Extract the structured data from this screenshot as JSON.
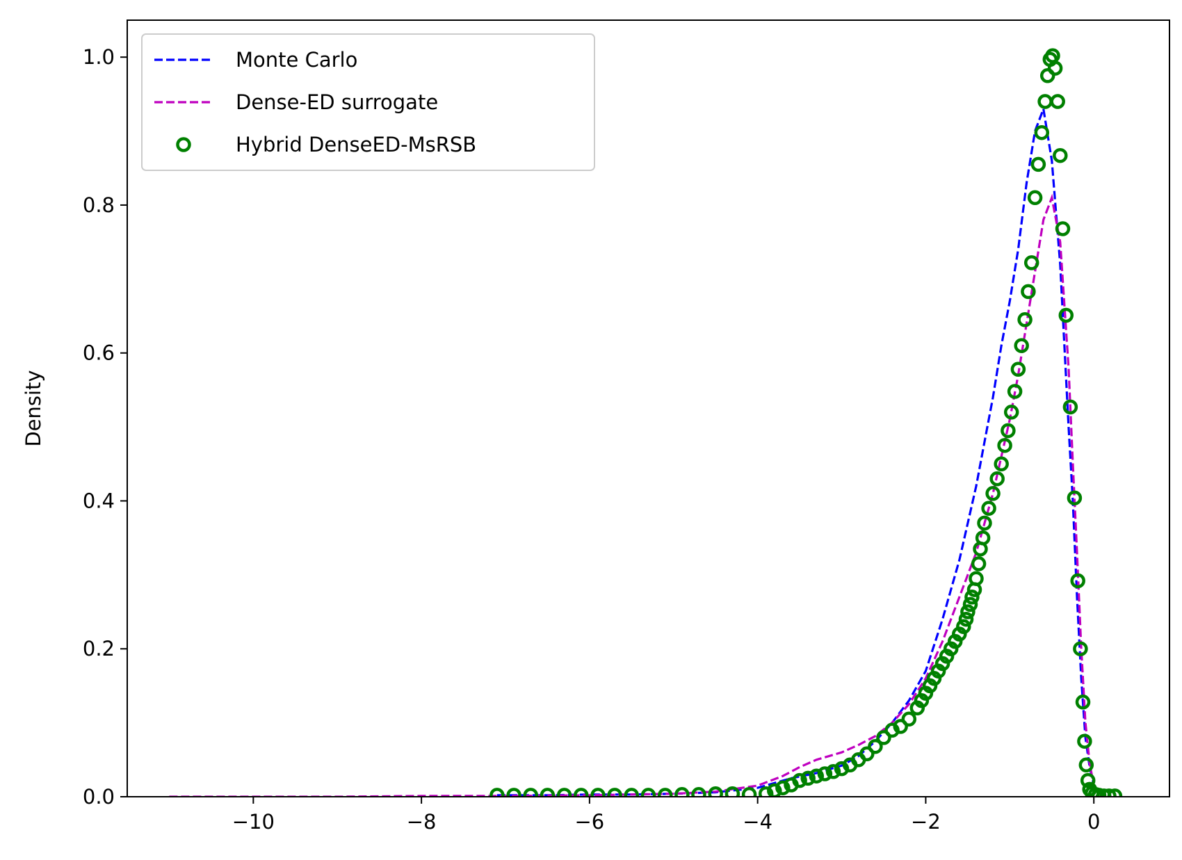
{
  "chart_data": {
    "type": "line",
    "title": "",
    "xlabel": "",
    "ylabel": "Density",
    "xlim": [
      -11.5,
      0.9
    ],
    "ylim": [
      0.0,
      1.05
    ],
    "x_ticks": [
      -10,
      -8,
      -6,
      -4,
      -2,
      0
    ],
    "x_tick_labels": [
      "−10",
      "−8",
      "−6",
      "−4",
      "−2",
      "0"
    ],
    "y_ticks": [
      0.0,
      0.2,
      0.4,
      0.6,
      0.8,
      1.0
    ],
    "y_tick_labels": [
      "0.0",
      "0.2",
      "0.4",
      "0.6",
      "0.8",
      "1.0"
    ],
    "grid": false,
    "legend_position": "top-left",
    "series": [
      {
        "name": "Monte Carlo",
        "style": "dashed-line",
        "color": "#0000ff",
        "x": [
          -7.1,
          -6.5,
          -6.0,
          -5.5,
          -5.0,
          -4.5,
          -4.0,
          -3.6,
          -3.3,
          -3.0,
          -2.8,
          -2.6,
          -2.4,
          -2.2,
          -2.0,
          -1.8,
          -1.6,
          -1.5,
          -1.4,
          -1.3,
          -1.2,
          -1.1,
          -1.0,
          -0.9,
          -0.8,
          -0.7,
          -0.6,
          -0.5,
          -0.4,
          -0.3,
          -0.25,
          -0.2,
          -0.15,
          -0.1,
          -0.05,
          0.0,
          0.1,
          0.2
        ],
        "y": [
          0.002,
          0.002,
          0.003,
          0.003,
          0.004,
          0.006,
          0.012,
          0.025,
          0.032,
          0.042,
          0.055,
          0.075,
          0.1,
          0.13,
          0.17,
          0.24,
          0.32,
          0.37,
          0.42,
          0.48,
          0.54,
          0.61,
          0.67,
          0.74,
          0.83,
          0.9,
          0.93,
          0.86,
          0.72,
          0.5,
          0.4,
          0.27,
          0.16,
          0.08,
          0.04,
          0.015,
          0.004,
          0.001
        ]
      },
      {
        "name": "Dense-ED surrogate",
        "style": "dashed-line",
        "color": "#bf00bf",
        "x": [
          -11.0,
          -10.0,
          -9.0,
          -8.0,
          -7.0,
          -6.0,
          -5.0,
          -4.5,
          -4.0,
          -3.7,
          -3.5,
          -3.3,
          -3.0,
          -2.8,
          -2.6,
          -2.4,
          -2.2,
          -2.0,
          -1.8,
          -1.6,
          -1.5,
          -1.4,
          -1.3,
          -1.2,
          -1.1,
          -1.0,
          -0.9,
          -0.8,
          -0.7,
          -0.6,
          -0.5,
          -0.4,
          -0.3,
          -0.25,
          -0.2,
          -0.15,
          -0.1,
          -0.05,
          0.0,
          0.1
        ],
        "y": [
          0.0,
          0.0,
          0.0,
          0.001,
          0.001,
          0.002,
          0.004,
          0.007,
          0.015,
          0.028,
          0.04,
          0.05,
          0.06,
          0.07,
          0.082,
          0.1,
          0.125,
          0.16,
          0.21,
          0.27,
          0.3,
          0.33,
          0.37,
          0.41,
          0.46,
          0.51,
          0.57,
          0.64,
          0.71,
          0.78,
          0.81,
          0.75,
          0.58,
          0.45,
          0.33,
          0.2,
          0.1,
          0.045,
          0.015,
          0.002
        ]
      },
      {
        "name": "Hybrid DenseED-MsRSB",
        "style": "markers",
        "color": "#008000",
        "x": [
          -7.1,
          -6.9,
          -6.7,
          -6.5,
          -6.3,
          -6.1,
          -5.9,
          -5.7,
          -5.5,
          -5.3,
          -5.1,
          -4.9,
          -4.7,
          -4.5,
          -4.3,
          -4.1,
          -3.9,
          -3.8,
          -3.7,
          -3.6,
          -3.5,
          -3.4,
          -3.3,
          -3.2,
          -3.1,
          -3.0,
          -2.9,
          -2.8,
          -2.7,
          -2.6,
          -2.5,
          -2.4,
          -2.3,
          -2.2,
          -2.1,
          -2.05,
          -2.0,
          -1.95,
          -1.9,
          -1.85,
          -1.8,
          -1.75,
          -1.7,
          -1.65,
          -1.6,
          -1.55,
          -1.52,
          -1.5,
          -1.47,
          -1.45,
          -1.42,
          -1.4,
          -1.37,
          -1.35,
          -1.32,
          -1.3,
          -1.25,
          -1.2,
          -1.15,
          -1.1,
          -1.06,
          -1.02,
          -0.98,
          -0.94,
          -0.9,
          -0.86,
          -0.82,
          -0.78,
          -0.74,
          -0.7,
          -0.66,
          -0.62,
          -0.58,
          -0.55,
          -0.52,
          -0.49,
          -0.46,
          -0.43,
          -0.4,
          -0.37,
          -0.33,
          -0.28,
          -0.23,
          -0.19,
          -0.16,
          -0.13,
          -0.11,
          -0.09,
          -0.07,
          -0.05,
          -0.02,
          0.02,
          0.06,
          0.12,
          0.18,
          0.25
        ],
        "y": [
          0.002,
          0.002,
          0.002,
          0.002,
          0.002,
          0.002,
          0.002,
          0.002,
          0.002,
          0.002,
          0.002,
          0.003,
          0.003,
          0.004,
          0.004,
          0.003,
          0.004,
          0.008,
          0.012,
          0.016,
          0.022,
          0.025,
          0.028,
          0.031,
          0.034,
          0.038,
          0.043,
          0.05,
          0.058,
          0.068,
          0.08,
          0.09,
          0.095,
          0.105,
          0.12,
          0.13,
          0.14,
          0.15,
          0.16,
          0.17,
          0.18,
          0.19,
          0.2,
          0.21,
          0.22,
          0.23,
          0.24,
          0.25,
          0.26,
          0.27,
          0.28,
          0.295,
          0.315,
          0.335,
          0.35,
          0.37,
          0.39,
          0.41,
          0.43,
          0.45,
          0.475,
          0.495,
          0.52,
          0.548,
          0.578,
          0.61,
          0.645,
          0.683,
          0.722,
          0.81,
          0.855,
          0.898,
          0.94,
          0.975,
          0.997,
          1.002,
          0.985,
          0.94,
          0.867,
          0.768,
          0.651,
          0.527,
          0.404,
          0.292,
          0.2,
          0.128,
          0.075,
          0.043,
          0.022,
          0.01,
          0.005,
          0.003,
          0.002,
          0.001,
          0.001,
          0.001
        ]
      }
    ]
  }
}
